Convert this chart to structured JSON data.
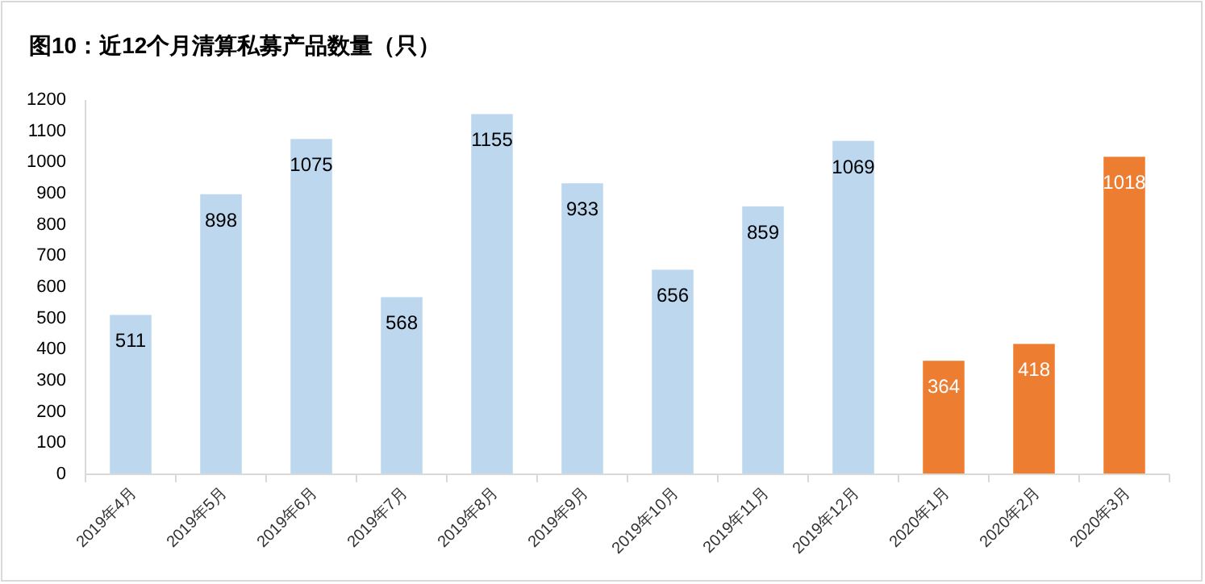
{
  "chart_data": {
    "type": "bar",
    "title": "图10：近12个月清算私募产品数量（只）",
    "categories": [
      "2019年4月",
      "2019年5月",
      "2019年6月",
      "2019年7月",
      "2019年8月",
      "2019年9月",
      "2019年10月",
      "2019年11月",
      "2019年12月",
      "2020年1月",
      "2020年2月",
      "2020年3月"
    ],
    "values": [
      511,
      898,
      1075,
      568,
      1155,
      933,
      656,
      859,
      1069,
      364,
      418,
      1018
    ],
    "colors": [
      "#bdd7ee",
      "#bdd7ee",
      "#bdd7ee",
      "#bdd7ee",
      "#bdd7ee",
      "#bdd7ee",
      "#bdd7ee",
      "#bdd7ee",
      "#bdd7ee",
      "#ed7d31",
      "#ed7d31",
      "#ed7d31"
    ],
    "ylim": [
      0,
      1200
    ],
    "yticks": [
      0,
      100,
      200,
      300,
      400,
      500,
      600,
      700,
      800,
      900,
      1000,
      1100,
      1200
    ],
    "grid": false,
    "data_labels": true
  }
}
